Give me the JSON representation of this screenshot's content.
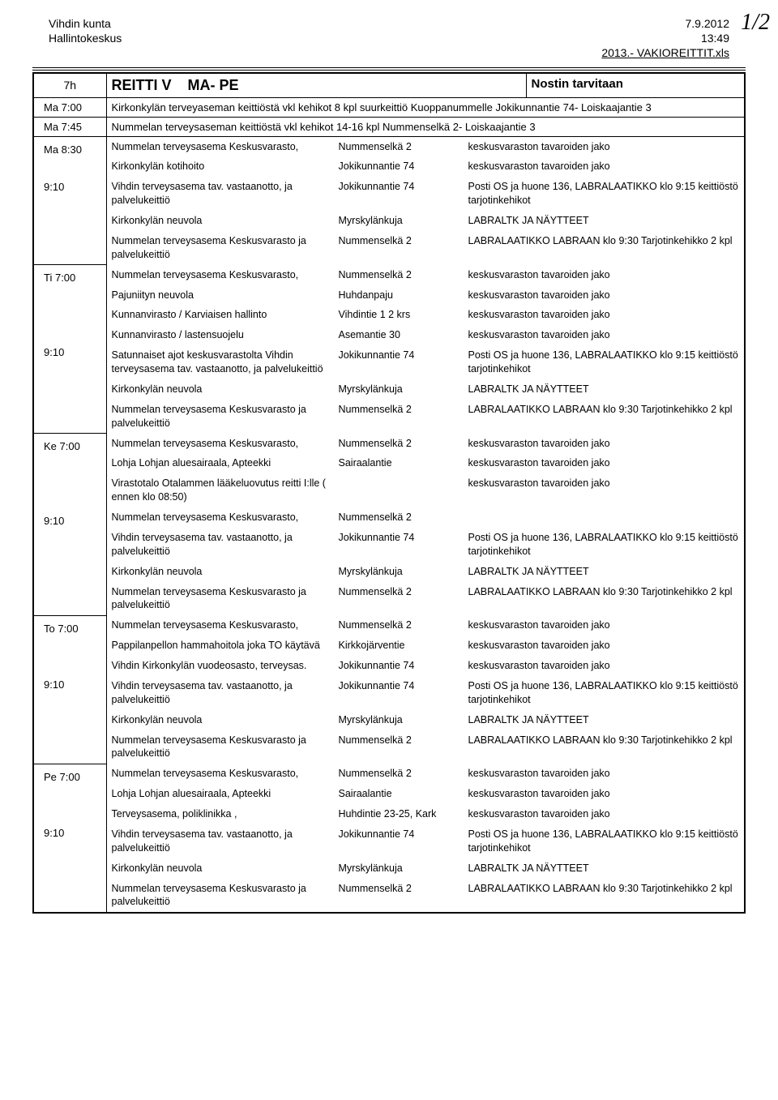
{
  "header": {
    "org": "Vihdin kunta",
    "dept": "Hallintokeskus",
    "date": "7.9.2012",
    "time": "13:49",
    "file": "2013.- VAKIOREITTIT.xls",
    "page_number": "1/2"
  },
  "title_row": {
    "cycle": "7h",
    "route": "REITTI V",
    "days": "MA- PE",
    "note": "Nostin tarvitaan"
  },
  "intro_rows": [
    {
      "time": "Ma 7:00",
      "text": "Kirkonkylän terveyaseman keittiöstä vkl kehikot 8 kpl suurkeittiö Kuoppanummelle Jokikunnantie 74- Loiskaajantie 3"
    },
    {
      "time": "Ma 7:45",
      "text": "Nummelan terveysaseman keittiöstä vkl kehikot 14-16 kpl Nummenselkä 2- Loiskaajantie 3"
    }
  ],
  "days": [
    {
      "times": [
        "Ma 8:30",
        "",
        "9:10"
      ],
      "rows": [
        {
          "c1": "Nummelan terveysasema Keskusvarasto,",
          "c2": "Nummenselkä 2",
          "c3": "keskusvaraston tavaroiden jako"
        },
        {
          "c1": "Kirkonkylän kotihoito",
          "c2": "Jokikunnantie 74",
          "c3": "keskusvaraston tavaroiden jako"
        },
        {
          "c1": "Vihdin terveysasema tav. vastaanotto, ja palvelukeittiö",
          "c2": "Jokikunnantie 74",
          "c3": "Posti OS ja huone 136, LABRALAATIKKO klo 9:15 keittiöstö tarjotinkehikot"
        },
        {
          "c1": "Kirkonkylän neuvola",
          "c2": "Myrskylänkuja",
          "c3": "LABRALTK JA NÄYTTEET"
        },
        {
          "c1": "Nummelan terveysasema Keskusvarasto ja palvelukeittiö",
          "c2": "Nummenselkä 2",
          "c3": "LABRALAATIKKO  LABRAAN klo 9:30 Tarjotinkehikko 2 kpl"
        }
      ]
    },
    {
      "times": [
        "Ti 7:00",
        "",
        "",
        "",
        "9:10"
      ],
      "rows": [
        {
          "c1": "Nummelan terveysasema Keskusvarasto,",
          "c2": "Nummenselkä 2",
          "c3": "keskusvaraston tavaroiden jako"
        },
        {
          "c1": "Pajuniityn neuvola",
          "c2": "Huhdanpaju",
          "c3": "keskusvaraston tavaroiden jako"
        },
        {
          "c1": "Kunnanvirasto / Karviaisen hallinto",
          "c2": "Vihdintie 1  2 krs",
          "c3": "keskusvaraston tavaroiden jako"
        },
        {
          "c1": "Kunnanvirasto / lastensuojelu",
          "c2": "Asemantie 30",
          "c3": "keskusvaraston tavaroiden jako"
        },
        {
          "c1": "Satunnaiset ajot keskusvarastolta Vihdin terveysasema tav. vastaanotto, ja palvelukeittiö",
          "c2": "Jokikunnantie 74",
          "c3": "Posti OS ja huone 136, LABRALAATIKKO klo 9:15 keittiöstö tarjotinkehikot"
        },
        {
          "c1": "Kirkonkylän neuvola",
          "c2": "Myrskylänkuja",
          "c3": "LABRALTK JA NÄYTTEET"
        },
        {
          "c1": "Nummelan terveysasema Keskusvarasto ja palvelukeittiö",
          "c2": "Nummenselkä 2",
          "c3": "LABRALAATIKKO  LABRAAN klo 9:30 Tarjotinkehikko 2 kpl"
        }
      ]
    },
    {
      "times": [
        "Ke 7:00",
        "",
        "",
        "",
        "9:10"
      ],
      "rows": [
        {
          "c1": "Nummelan terveysasema Keskusvarasto,",
          "c2": "Nummenselkä 2",
          "c3": "keskusvaraston tavaroiden jako"
        },
        {
          "c1": "Lohja  Lohjan aluesairaala, Apteekki",
          "c2": "Sairaalantie",
          "c3": "keskusvaraston tavaroiden jako"
        },
        {
          "c1": "Virastotalo  Otalammen lääkeluovutus reitti I:lle ( ennen klo 08:50)",
          "c2": "",
          "c3": "keskusvaraston tavaroiden jako"
        },
        {
          "c1": "Nummelan terveysasema Keskusvarasto,",
          "c2": "Nummenselkä 2",
          "c3": ""
        },
        {
          "c1": "Vihdin terveysasema tav. vastaanotto, ja palvelukeittiö",
          "c2": "Jokikunnantie 74",
          "c3": "Posti OS ja huone 136, LABRALAATIKKO klo 9:15 keittiöstö tarjotinkehikot"
        },
        {
          "c1": "Kirkonkylän neuvola",
          "c2": "Myrskylänkuja",
          "c3": "LABRALTK JA NÄYTTEET"
        },
        {
          "c1": "Nummelan terveysasema Keskusvarasto ja palvelukeittiö",
          "c2": "Nummenselkä 2",
          "c3": "LABRALAATIKKO  LABRAAN klo 9:30 Tarjotinkehikko 2 kpl"
        }
      ]
    },
    {
      "times": [
        "To 7:00",
        "",
        "",
        "9:10"
      ],
      "rows": [
        {
          "c1": "Nummelan terveysasema Keskusvarasto,",
          "c2": "Nummenselkä 2",
          "c3": "keskusvaraston tavaroiden jako"
        },
        {
          "c1": "Pappilanpellon hammahoitola joka TO käytävä",
          "c2": "Kirkkojärventie",
          "c3": "keskusvaraston tavaroiden jako"
        },
        {
          "c1": "Vihdin Kirkonkylän vuodeosasto, terveysas.",
          "c2": "Jokikunnantie 74",
          "c3": "keskusvaraston tavaroiden jako"
        },
        {
          "c1": "Vihdin terveysasema tav. vastaanotto, ja palvelukeittiö",
          "c2": "Jokikunnantie 74",
          "c3": "Posti OS ja huone 136, LABRALAATIKKO klo 9:15 keittiöstö tarjotinkehikot"
        },
        {
          "c1": "Kirkonkylän neuvola",
          "c2": "Myrskylänkuja",
          "c3": "LABRALTK JA NÄYTTEET"
        },
        {
          "c1": "Nummelan terveysasema Keskusvarasto ja palvelukeittiö",
          "c2": "Nummenselkä 2",
          "c3": "LABRALAATIKKO  LABRAAN klo 9:30 Tarjotinkehikko 2 kpl"
        }
      ]
    },
    {
      "times": [
        "Pe 7:00",
        "",
        "",
        "9:10"
      ],
      "rows": [
        {
          "c1": "Nummelan terveysasema Keskusvarasto,",
          "c2": "Nummenselkä 2",
          "c3": "keskusvaraston tavaroiden jako"
        },
        {
          "c1": "Lohja  Lohjan aluesairaala, Apteekki",
          "c2": "Sairaalantie",
          "c3": "keskusvaraston tavaroiden jako"
        },
        {
          "c1": "Terveysasema, poliklinikka ,",
          "c2": "Huhdintie 23-25, Kark",
          "c3": "keskusvaraston tavaroiden jako"
        },
        {
          "c1": "Vihdin terveysasema tav. vastaanotto, ja palvelukeittiö",
          "c2": "Jokikunnantie 74",
          "c3": "Posti OS ja huone 136, LABRALAATIKKO klo 9:15 keittiöstö tarjotinkehikot"
        },
        {
          "c1": "Kirkonkylän neuvola",
          "c2": "Myrskylänkuja",
          "c3": "LABRALTK JA NÄYTTEET"
        },
        {
          "c1": "Nummelan terveysasema Keskusvarasto ja palvelukeittiö",
          "c2": "Nummenselkä 2",
          "c3": "LABRALAATIKKO  LABRAAN klo 9:30 Tarjotinkehikko 2 kpl"
        }
      ]
    }
  ]
}
